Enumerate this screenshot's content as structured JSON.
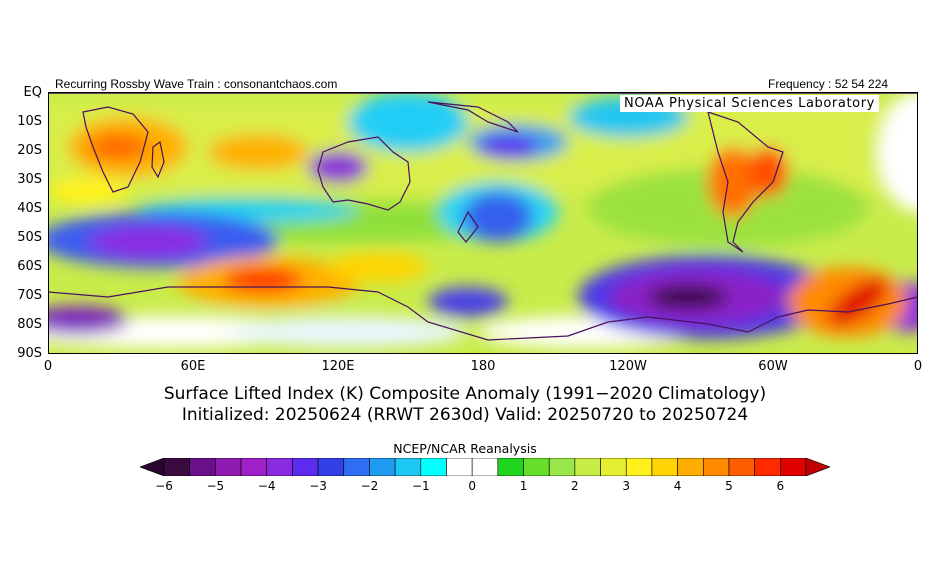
{
  "header": {
    "left_text": "Recurring Rossby Wave Train : consonantchaos.com",
    "right_text": "Frequency : 52 54 224"
  },
  "map": {
    "watermark": "NOAA Physical Sciences Laboratory",
    "lat_labels": [
      "EQ",
      "10S",
      "20S",
      "30S",
      "40S",
      "50S",
      "60S",
      "70S",
      "80S",
      "90S"
    ],
    "lon_labels": [
      "0",
      "60E",
      "120E",
      "180",
      "120W",
      "60W",
      "0"
    ],
    "lat_range": [
      -90,
      0
    ],
    "lon_range": [
      0,
      360
    ]
  },
  "title": {
    "line1": "Surface Lifted Index (K) Composite Anomaly (1991−2020 Climatology)",
    "line2": "Initialized: 20250624 (RRWT 2630d) Valid: 20250720 to 20250724"
  },
  "source": "NCEP/NCAR Reanalysis",
  "colorbar": {
    "colors": [
      "#3b0a3f",
      "#6a0f8a",
      "#8f1bb0",
      "#a020c8",
      "#8a2be2",
      "#5b2cf0",
      "#3340e8",
      "#2f6df5",
      "#1f9bf0",
      "#1ec8f5",
      "#00ffff",
      "#ffffff",
      "#ffffff",
      "#1fd41f",
      "#66e02a",
      "#99e64a",
      "#c6ec45",
      "#e6ee32",
      "#fff21a",
      "#ffd400",
      "#ffad00",
      "#ff8a00",
      "#ff5e00",
      "#ff2a00",
      "#e00000"
    ],
    "labels": [
      "−6",
      "−5",
      "−4",
      "−3",
      "−2",
      "−1",
      "0",
      "1",
      "2",
      "3",
      "4",
      "5",
      "6"
    ]
  }
}
